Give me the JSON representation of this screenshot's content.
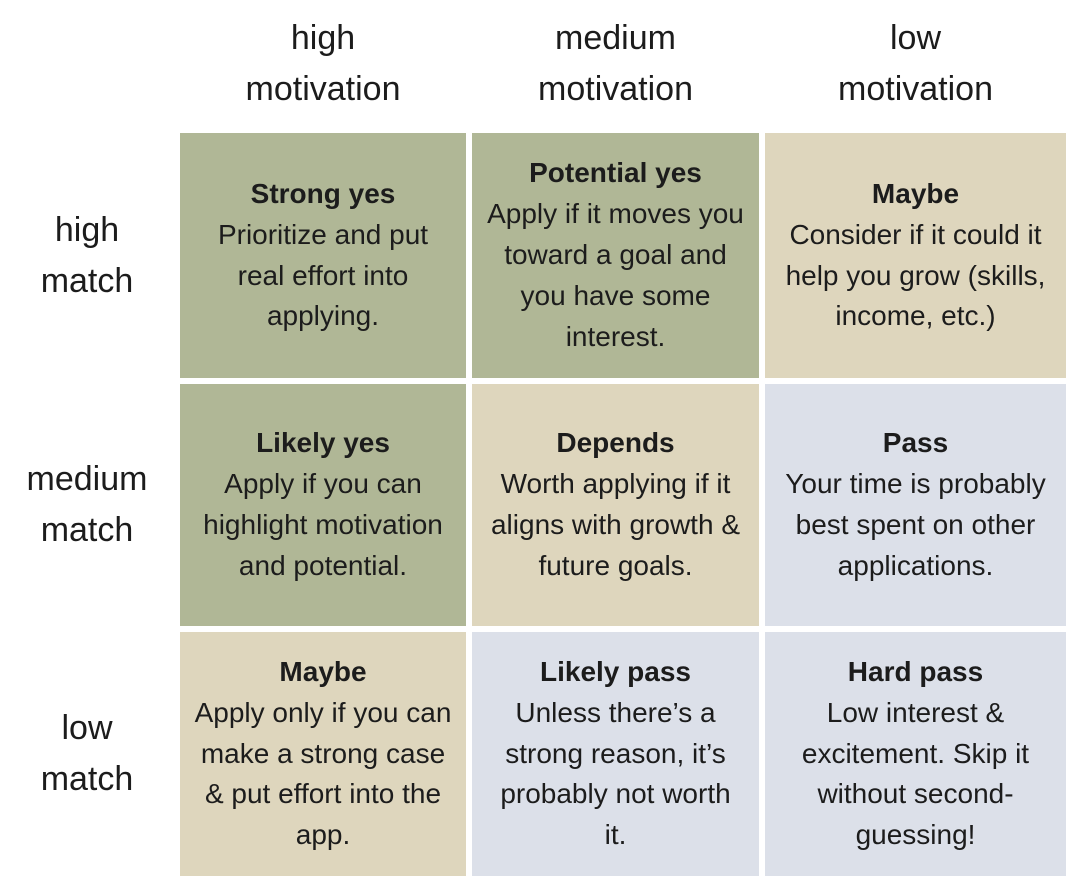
{
  "palette": {
    "strong_bg": "#b0b796",
    "neutral_bg": "#ded6bd",
    "weak_bg": "#dce0e9",
    "text": "#1c1c1c",
    "page_bg": "#ffffff"
  },
  "columns": [
    {
      "label": "high\nmotivation"
    },
    {
      "label": "medium\nmotivation"
    },
    {
      "label": "low\nmotivation"
    }
  ],
  "rows": [
    {
      "label": "high\nmatch",
      "cells": [
        {
          "verdict": "Strong yes",
          "advice": "Prioritize and put real effort into applying.",
          "bg": "#b0b796"
        },
        {
          "verdict": "Potential yes",
          "advice": "Apply if it moves you toward a goal and you have some interest.",
          "bg": "#b0b796"
        },
        {
          "verdict": "Maybe",
          "advice": "Consider if it could it help you grow (skills, income, etc.)",
          "bg": "#ded6bd"
        }
      ]
    },
    {
      "label": "medium\nmatch",
      "cells": [
        {
          "verdict": "Likely yes",
          "advice": "Apply if you can highlight motivation and potential.",
          "bg": "#b0b796"
        },
        {
          "verdict": "Depends",
          "advice": "Worth applying if it aligns with growth & future goals.",
          "bg": "#ded6bd"
        },
        {
          "verdict": "Pass",
          "advice": "Your time is probably best spent on other applications.",
          "bg": "#dce0e9"
        }
      ]
    },
    {
      "label": "low\nmatch",
      "cells": [
        {
          "verdict": "Maybe",
          "advice": "Apply only if you can make a strong case & put effort into the app.",
          "bg": "#ded6bd"
        },
        {
          "verdict": "Likely pass",
          "advice": "Unless there’s a strong reason, it’s probably not worth it.",
          "bg": "#dce0e9"
        },
        {
          "verdict": "Hard pass",
          "advice": "Low interest & excitement. Skip it without second-guessing!",
          "bg": "#dce0e9"
        }
      ]
    }
  ]
}
